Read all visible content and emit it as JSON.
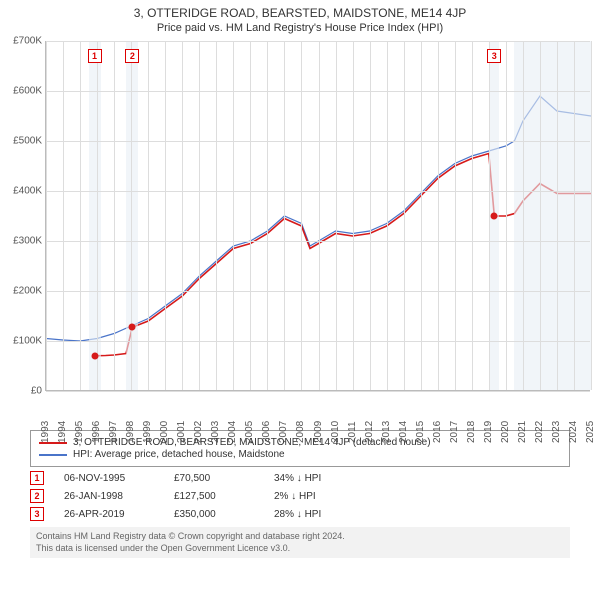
{
  "title": "3, OTTERIDGE ROAD, BEARSTED, MAIDSTONE, ME14 4JP",
  "subtitle": "Price paid vs. HM Land Registry's House Price Index (HPI)",
  "chart": {
    "y": {
      "min": 0,
      "max": 700000,
      "step": 100000,
      "labels": [
        "£0",
        "£100K",
        "£200K",
        "£300K",
        "£400K",
        "£500K",
        "£600K",
        "£700K"
      ]
    },
    "x": {
      "min": 1993,
      "max": 2025,
      "years": [
        1993,
        1994,
        1995,
        1996,
        1997,
        1998,
        1999,
        2000,
        2001,
        2002,
        2003,
        2004,
        2005,
        2006,
        2007,
        2008,
        2009,
        2010,
        2011,
        2012,
        2013,
        2014,
        2015,
        2016,
        2017,
        2018,
        2019,
        2020,
        2021,
        2022,
        2023,
        2024,
        2025
      ]
    },
    "plot_bg": "#ffffff",
    "grid_color": "#dddddd",
    "shaded_bands": [
      {
        "from": 1995.5,
        "to": 1996.2,
        "color": "#e8eef5"
      },
      {
        "from": 1997.7,
        "to": 1998.4,
        "color": "#e8eef5"
      },
      {
        "from": 2019.0,
        "to": 2019.6,
        "color": "#e8eef5"
      },
      {
        "from": 2020.5,
        "to": 2025.0,
        "color": "#e8eef5"
      }
    ],
    "series": [
      {
        "name": "hpi",
        "label": "HPI: Average price, detached house, Maidstone",
        "color": "#4a74c9",
        "width": 1.2,
        "points": [
          [
            1993,
            105000
          ],
          [
            1994,
            102000
          ],
          [
            1995,
            100000
          ],
          [
            1996,
            105000
          ],
          [
            1997,
            115000
          ],
          [
            1998,
            130000
          ],
          [
            1999,
            145000
          ],
          [
            2000,
            170000
          ],
          [
            2001,
            195000
          ],
          [
            2002,
            230000
          ],
          [
            2003,
            260000
          ],
          [
            2004,
            290000
          ],
          [
            2005,
            300000
          ],
          [
            2006,
            320000
          ],
          [
            2007,
            350000
          ],
          [
            2008,
            335000
          ],
          [
            2008.5,
            290000
          ],
          [
            2009,
            300000
          ],
          [
            2010,
            320000
          ],
          [
            2011,
            315000
          ],
          [
            2012,
            320000
          ],
          [
            2013,
            335000
          ],
          [
            2014,
            360000
          ],
          [
            2015,
            395000
          ],
          [
            2016,
            430000
          ],
          [
            2017,
            455000
          ],
          [
            2018,
            470000
          ],
          [
            2019,
            480000
          ],
          [
            2020,
            490000
          ],
          [
            2020.5,
            500000
          ],
          [
            2021,
            540000
          ],
          [
            2022,
            590000
          ],
          [
            2023,
            560000
          ],
          [
            2024,
            555000
          ],
          [
            2025,
            550000
          ]
        ]
      },
      {
        "name": "price_paid",
        "label": "3, OTTERIDGE ROAD, BEARSTED, MAIDSTONE, ME14 4JP (detached house)",
        "color": "#d61a1a",
        "width": 1.6,
        "points": [
          [
            1995.85,
            70500
          ],
          [
            1996.5,
            71000
          ],
          [
            1997,
            72000
          ],
          [
            1997.7,
            75000
          ],
          [
            1998.07,
            127500
          ],
          [
            1999,
            140000
          ],
          [
            2000,
            165000
          ],
          [
            2001,
            190000
          ],
          [
            2002,
            225000
          ],
          [
            2003,
            255000
          ],
          [
            2004,
            285000
          ],
          [
            2005,
            295000
          ],
          [
            2006,
            315000
          ],
          [
            2007,
            345000
          ],
          [
            2008,
            330000
          ],
          [
            2008.5,
            285000
          ],
          [
            2009,
            295000
          ],
          [
            2010,
            315000
          ],
          [
            2011,
            310000
          ],
          [
            2012,
            315000
          ],
          [
            2013,
            330000
          ],
          [
            2014,
            355000
          ],
          [
            2015,
            390000
          ],
          [
            2016,
            425000
          ],
          [
            2017,
            450000
          ],
          [
            2018,
            465000
          ],
          [
            2019,
            475000
          ],
          [
            2019.32,
            350000
          ],
          [
            2020,
            350000
          ],
          [
            2020.5,
            355000
          ],
          [
            2021,
            380000
          ],
          [
            2022,
            415000
          ],
          [
            2023,
            395000
          ],
          [
            2024,
            395000
          ],
          [
            2025,
            395000
          ]
        ]
      }
    ],
    "price_markers": [
      {
        "n": 1,
        "year": 1995.85,
        "value": 70500
      },
      {
        "n": 2,
        "year": 1998.07,
        "value": 127500
      },
      {
        "n": 3,
        "year": 2019.32,
        "value": 350000
      }
    ],
    "marker_color": "#d61a1a"
  },
  "legend": {
    "items": [
      {
        "color": "#d61a1a",
        "label": "3, OTTERIDGE ROAD, BEARSTED, MAIDSTONE, ME14 4JP (detached house)"
      },
      {
        "color": "#4a74c9",
        "label": "HPI: Average price, detached house, Maidstone"
      }
    ]
  },
  "transactions": [
    {
      "n": "1",
      "date": "06-NOV-1995",
      "price": "£70,500",
      "delta": "34% ↓ HPI"
    },
    {
      "n": "2",
      "date": "26-JAN-1998",
      "price": "£127,500",
      "delta": "2% ↓ HPI"
    },
    {
      "n": "3",
      "date": "26-APR-2019",
      "price": "£350,000",
      "delta": "28% ↓ HPI"
    }
  ],
  "footer": {
    "line1": "Contains HM Land Registry data © Crown copyright and database right 2024.",
    "line2": "This data is licensed under the Open Government Licence v3.0."
  }
}
